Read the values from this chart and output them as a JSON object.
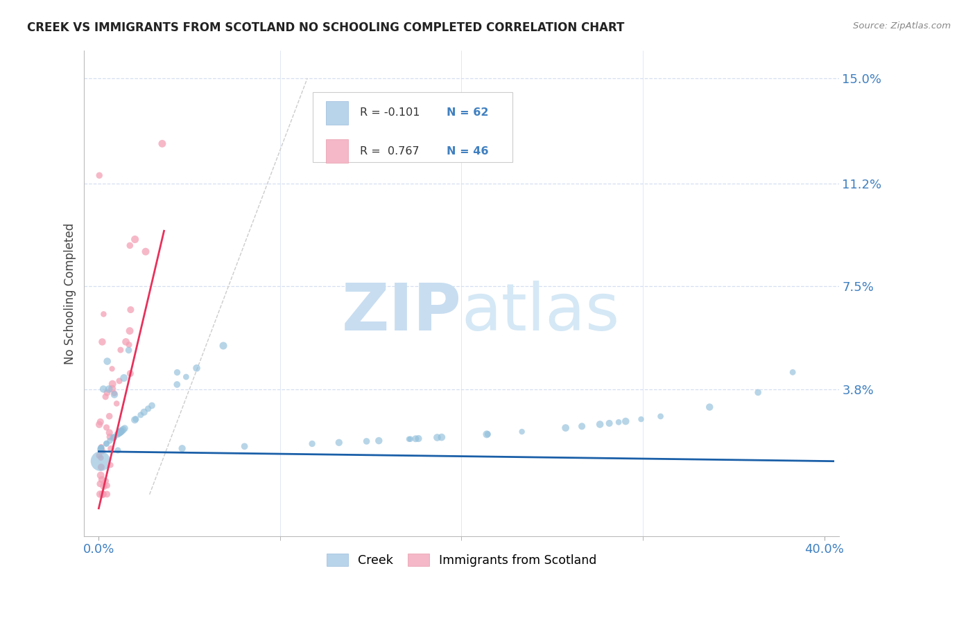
{
  "title": "CREEK VS IMMIGRANTS FROM SCOTLAND NO SCHOOLING COMPLETED CORRELATION CHART",
  "source": "Source: ZipAtlas.com",
  "ylabel": "No Schooling Completed",
  "y_tick_labels": [
    "3.8%",
    "7.5%",
    "11.2%",
    "15.0%"
  ],
  "y_tick_values": [
    0.038,
    0.075,
    0.112,
    0.15
  ],
  "x_tick_labels": [
    "0.0%",
    "40.0%"
  ],
  "x_tick_values": [
    0.0,
    0.4
  ],
  "xlim": [
    -0.008,
    0.408
  ],
  "ylim": [
    -0.015,
    0.16
  ],
  "creek_color": "#91bfdb",
  "scotland_color": "#f4a0b5",
  "creek_line_color": "#1a5fa8",
  "scotland_line_color": "#e8305a",
  "diagonal_line_color": "#cccccc",
  "background_color": "#ffffff",
  "grid_color": "#d5dff0",
  "watermark_color": "#deeaf5",
  "title_color": "#222222",
  "tick_label_color": "#4080c0",
  "creek_R": -0.101,
  "creek_N": 62,
  "scotland_R": 0.767,
  "scotland_N": 46,
  "legend_creek_color": "#b8d4ea",
  "legend_scotland_color": "#f4b8c8",
  "legend_text_color": "#4080c0"
}
